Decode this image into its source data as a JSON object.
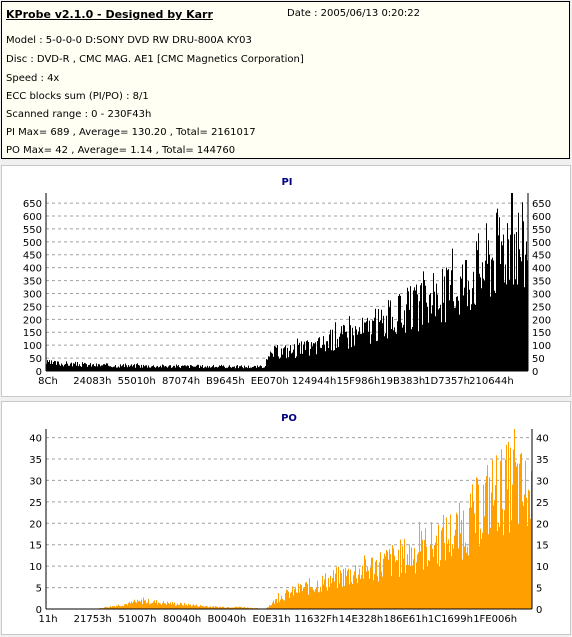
{
  "info": {
    "title": "KProbe v2.1.0 - Designed by Karr",
    "date": "Date : 2005/06/13 0:20:22",
    "lines": [
      "Model : 5-0-0-0 D:SONY    DVD RW DRU-800A  KY03",
      "Disc : DVD-R , CMC MAG. AE1 [CMC Magnetics Corporation]",
      "Speed : 4x",
      "ECC blocks sum (PI/PO) : 8/1",
      "Scanned range : 0 - 230F43h",
      "PI Max= 689 , Average= 130.20 , Total= 2161017",
      "PO Max= 42 , Average= 1.14 , Total= 144760"
    ]
  },
  "colors": {
    "pi": "#000000",
    "po": "#ffa000",
    "title": "#000080",
    "grid": "#a0a0a0"
  },
  "chart_data": [
    {
      "type": "bar",
      "title": "PI",
      "ylim": [
        0,
        689
      ],
      "yticks": [
        0,
        50,
        100,
        150,
        200,
        250,
        300,
        350,
        400,
        450,
        500,
        550,
        600,
        650
      ],
      "xtick_labels": [
        "8Ch",
        "24083h",
        "55010h",
        "87074h",
        "B9645h",
        "EE070h",
        "124944h",
        "15F986h",
        "19B383h",
        "1D7357h",
        "210644h"
      ],
      "xrange": [
        "0",
        "230F43h"
      ],
      "grid": true,
      "envelope": {
        "x": [
          0,
          5,
          10,
          20,
          30,
          45,
          47,
          55,
          60,
          65,
          70,
          75,
          80,
          85,
          88,
          92,
          96,
          98,
          100
        ],
        "y": [
          35,
          30,
          25,
          22,
          20,
          18,
          80,
          100,
          140,
          170,
          210,
          260,
          300,
          360,
          420,
          490,
          580,
          560,
          520
        ],
        "peak": 689
      }
    },
    {
      "type": "bar",
      "title": "PO",
      "ylim": [
        0,
        42
      ],
      "yticks": [
        0,
        5,
        10,
        15,
        20,
        25,
        30,
        35,
        40
      ],
      "xtick_labels": [
        "11h",
        "21753h",
        "51007h",
        "80040h",
        "B0040h",
        "E0E31h",
        "11632Fh",
        "14E328h",
        "186E61h",
        "1C1699h",
        "1FE006h"
      ],
      "xrange": [
        "0",
        "230F43h"
      ],
      "grid": true,
      "envelope": {
        "x": [
          0,
          10,
          15,
          20,
          25,
          30,
          35,
          40,
          45,
          48,
          52,
          60,
          65,
          70,
          75,
          80,
          85,
          88,
          92,
          96,
          100
        ],
        "y": [
          0,
          0,
          1,
          2,
          1.5,
          1,
          0.5,
          0.5,
          0,
          3,
          5,
          8,
          10,
          12,
          14,
          17,
          20,
          24,
          30,
          32,
          28
        ],
        "peak": 42
      }
    }
  ]
}
